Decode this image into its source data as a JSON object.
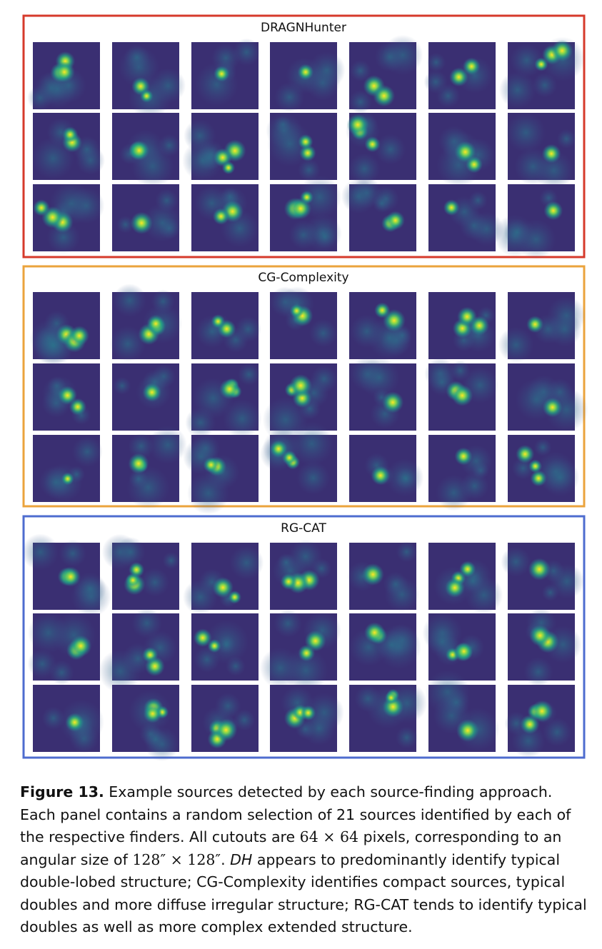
{
  "panels": [
    {
      "title": "DRAGNHunter"
    },
    {
      "title": "CG-Complexity"
    },
    {
      "title": "RG-CAT"
    }
  ],
  "caption": {
    "label": "Figure 13.",
    "parts": [
      " Example sources detected by each source-finding approach. Each panel contains a random selection of 21 sources identified by each of the respective finders. All cutouts are ",
      "64 × 64",
      " pixels, corresponding to an angular size of ",
      "128″ × 128″",
      ". ",
      "DH",
      " appears to predominantly identify typical double-lobed structure; CG-Complexity identifies compact sources, typical doubles and more diffuse irregular structure; RG-CAT tends to identify typical doubles as well as more complex extended structure."
    ]
  }
}
